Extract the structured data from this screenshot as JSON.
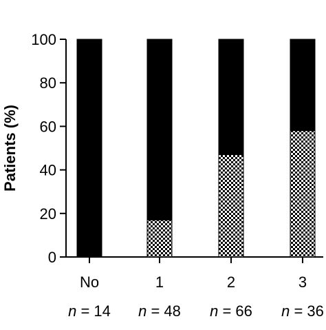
{
  "chart_data": {
    "type": "bar",
    "stacked": true,
    "title": "",
    "ylabel": "Patients (%)",
    "xlabel": "",
    "ylim": [
      0,
      100
    ],
    "yticks": [
      0,
      20,
      40,
      60,
      80,
      100
    ],
    "categories": [
      "No",
      "1",
      "2",
      "3"
    ],
    "sample_sizes": [
      "n = 14",
      "n = 48",
      "n = 66",
      "n = 36"
    ],
    "series": [
      {
        "pattern": "checkered",
        "color": "#000000",
        "values": [
          0,
          17,
          47,
          58
        ]
      },
      {
        "pattern": "solid",
        "color": "#000000",
        "values": [
          100,
          83,
          53,
          42
        ]
      }
    ],
    "grid": false,
    "legend": "none"
  },
  "colors": {
    "bar_solid": "#000000",
    "checker_dark": "#000000",
    "checker_light": "#ffffff",
    "axis": "#000000",
    "title_text": "#666666"
  }
}
